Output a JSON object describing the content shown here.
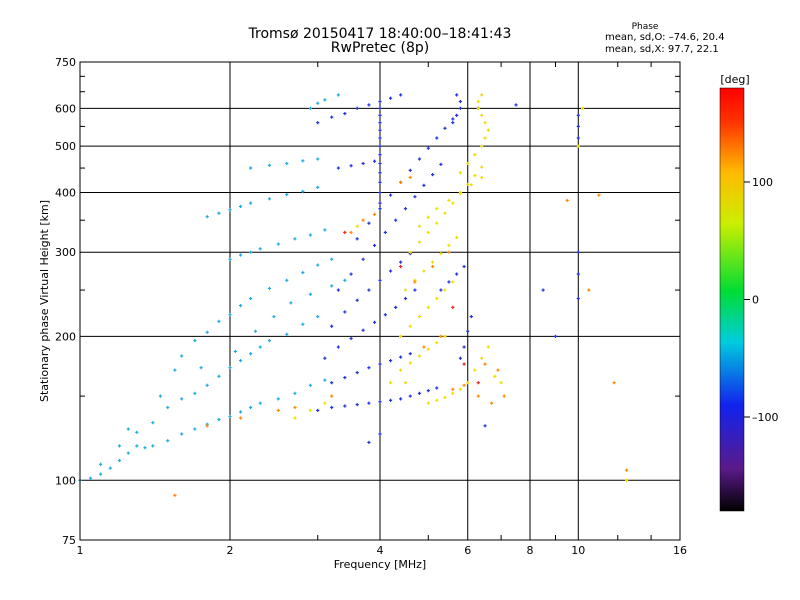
{
  "header": {
    "title_line1": "Tromsø 20150417 18:40:00–18:41:43",
    "title_line2": "RwPretec (8p)",
    "phase_title": "Phase",
    "phase_o": "mean, sd,O: –74.6, 20.4",
    "phase_x": "mean, sd,X:  97.7, 22.1"
  },
  "chart_data": {
    "type": "scatter",
    "xlabel": "Frequency [MHz]",
    "ylabel": "Stationary phase Virtual Height [km]",
    "x_scale": "log",
    "y_scale": "log",
    "xlim": [
      1,
      16
    ],
    "ylim": [
      75,
      750
    ],
    "x_ticks": [
      1,
      2,
      4,
      6,
      8,
      10,
      16
    ],
    "x_tick_labels": [
      "1",
      "2",
      "4",
      "6",
      "8",
      "10",
      "16"
    ],
    "y_ticks": [
      75,
      100,
      200,
      300,
      400,
      500,
      600,
      750
    ],
    "y_tick_labels": [
      "75",
      "100",
      "200",
      "300",
      "400",
      "500",
      "600",
      "750"
    ],
    "grid": true,
    "colorbar": {
      "label": "[deg]",
      "range": [
        -180,
        180
      ],
      "ticks": [
        100,
        0,
        -100
      ],
      "tick_labels": [
        "100",
        "0",
        "–100"
      ]
    },
    "series": [
      {
        "color_value": -30,
        "color": "#22aadd",
        "points": [
          [
            1.0,
            100
          ],
          [
            1.05,
            101
          ],
          [
            1.1,
            103
          ],
          [
            1.15,
            106
          ],
          [
            1.2,
            110
          ],
          [
            1.25,
            114
          ],
          [
            1.3,
            118
          ],
          [
            1.35,
            117
          ],
          [
            1.4,
            118
          ],
          [
            1.5,
            121
          ],
          [
            1.6,
            125
          ],
          [
            1.7,
            128
          ],
          [
            1.8,
            131
          ],
          [
            1.9,
            134
          ],
          [
            2.0,
            136
          ],
          [
            2.1,
            139
          ],
          [
            2.2,
            142
          ],
          [
            2.3,
            145
          ],
          [
            2.5,
            148
          ],
          [
            2.7,
            152
          ],
          [
            2.9,
            158
          ],
          [
            3.1,
            162
          ],
          [
            1.2,
            118
          ],
          [
            1.3,
            126
          ],
          [
            1.4,
            132
          ],
          [
            1.5,
            142
          ],
          [
            1.6,
            148
          ],
          [
            1.7,
            152
          ],
          [
            1.8,
            158
          ],
          [
            1.9,
            165
          ],
          [
            2.0,
            172
          ],
          [
            2.1,
            178
          ],
          [
            2.2,
            184
          ],
          [
            2.3,
            190
          ],
          [
            2.4,
            196
          ],
          [
            2.6,
            202
          ],
          [
            2.8,
            212
          ],
          [
            3.0,
            220
          ],
          [
            1.6,
            182
          ],
          [
            1.7,
            196
          ],
          [
            1.8,
            204
          ],
          [
            1.9,
            215
          ],
          [
            2.0,
            222
          ],
          [
            2.1,
            232
          ],
          [
            2.2,
            240
          ],
          [
            2.4,
            252
          ],
          [
            2.6,
            262
          ],
          [
            2.8,
            272
          ],
          [
            3.0,
            282
          ],
          [
            3.2,
            290
          ],
          [
            2.0,
            290
          ],
          [
            2.1,
            296
          ],
          [
            2.2,
            300
          ],
          [
            2.3,
            305
          ],
          [
            2.5,
            312
          ],
          [
            2.7,
            320
          ],
          [
            2.9,
            326
          ],
          [
            3.1,
            334
          ],
          [
            1.8,
            356
          ],
          [
            1.9,
            362
          ],
          [
            2.0,
            368
          ],
          [
            2.1,
            374
          ],
          [
            2.2,
            380
          ],
          [
            2.4,
            388
          ],
          [
            2.6,
            396
          ],
          [
            2.8,
            402
          ],
          [
            3.0,
            410
          ],
          [
            2.2,
            450
          ],
          [
            2.4,
            456
          ],
          [
            2.6,
            460
          ],
          [
            2.8,
            466
          ],
          [
            3.0,
            470
          ],
          [
            2.9,
            600
          ],
          [
            3.0,
            615
          ],
          [
            3.1,
            625
          ],
          [
            3.3,
            640
          ],
          [
            1.1,
            108
          ],
          [
            1.25,
            128
          ],
          [
            1.45,
            150
          ],
          [
            1.55,
            170
          ],
          [
            1.75,
            172
          ],
          [
            2.05,
            186
          ],
          [
            2.25,
            205
          ],
          [
            2.45,
            220
          ],
          [
            2.65,
            235
          ],
          [
            2.9,
            245
          ],
          [
            3.2,
            255
          ],
          [
            3.4,
            262
          ]
        ]
      },
      {
        "color_value": -110,
        "color": "#2233dd",
        "points": [
          [
            3.0,
            140
          ],
          [
            3.2,
            142
          ],
          [
            3.4,
            143
          ],
          [
            3.6,
            144
          ],
          [
            3.8,
            145
          ],
          [
            4.0,
            146
          ],
          [
            4.2,
            147
          ],
          [
            4.4,
            148
          ],
          [
            4.6,
            150
          ],
          [
            4.8,
            152
          ],
          [
            5.0,
            154
          ],
          [
            5.2,
            156
          ],
          [
            3.2,
            160
          ],
          [
            3.4,
            164
          ],
          [
            3.6,
            168
          ],
          [
            3.8,
            172
          ],
          [
            4.0,
            175
          ],
          [
            4.2,
            178
          ],
          [
            4.4,
            181
          ],
          [
            4.6,
            184
          ],
          [
            3.1,
            180
          ],
          [
            3.3,
            190
          ],
          [
            3.5,
            198
          ],
          [
            3.7,
            206
          ],
          [
            3.9,
            214
          ],
          [
            4.1,
            222
          ],
          [
            4.3,
            230
          ],
          [
            4.5,
            240
          ],
          [
            4.7,
            250
          ],
          [
            3.2,
            210
          ],
          [
            3.4,
            225
          ],
          [
            3.6,
            238
          ],
          [
            3.8,
            250
          ],
          [
            4.0,
            262
          ],
          [
            4.2,
            274
          ],
          [
            4.4,
            286
          ],
          [
            4.6,
            298
          ],
          [
            3.3,
            250
          ],
          [
            3.5,
            270
          ],
          [
            3.7,
            290
          ],
          [
            3.9,
            310
          ],
          [
            4.1,
            330
          ],
          [
            4.3,
            350
          ],
          [
            4.5,
            370
          ],
          [
            4.7,
            392
          ],
          [
            4.9,
            414
          ],
          [
            5.1,
            436
          ],
          [
            5.3,
            458
          ],
          [
            3.6,
            320
          ],
          [
            3.8,
            345
          ],
          [
            4.0,
            370
          ],
          [
            4.2,
            395
          ],
          [
            4.4,
            420
          ],
          [
            4.6,
            445
          ],
          [
            4.8,
            470
          ],
          [
            5.0,
            495
          ],
          [
            5.2,
            520
          ],
          [
            5.4,
            545
          ],
          [
            5.6,
            570
          ],
          [
            4.0,
            380
          ],
          [
            4.0,
            400
          ],
          [
            4.0,
            420
          ],
          [
            4.0,
            440
          ],
          [
            4.0,
            460
          ],
          [
            4.0,
            480
          ],
          [
            4.0,
            500
          ],
          [
            4.0,
            520
          ],
          [
            4.0,
            540
          ],
          [
            4.0,
            560
          ],
          [
            4.0,
            580
          ],
          [
            4.0,
            600
          ],
          [
            5.6,
            560
          ],
          [
            5.7,
            580
          ],
          [
            5.8,
            600
          ],
          [
            5.8,
            620
          ],
          [
            5.7,
            640
          ],
          [
            3.0,
            560
          ],
          [
            3.2,
            575
          ],
          [
            3.4,
            585
          ],
          [
            3.6,
            600
          ],
          [
            3.8,
            610
          ],
          [
            4.0,
            620
          ],
          [
            4.2,
            630
          ],
          [
            4.4,
            640
          ],
          [
            3.3,
            450
          ],
          [
            3.5,
            455
          ],
          [
            3.7,
            460
          ],
          [
            3.9,
            465
          ],
          [
            5.3,
            250
          ],
          [
            5.5,
            260
          ],
          [
            5.7,
            270
          ],
          [
            5.9,
            280
          ],
          [
            5.8,
            180
          ],
          [
            5.9,
            190
          ],
          [
            6.0,
            205
          ],
          [
            6.1,
            220
          ],
          [
            3.8,
            120
          ],
          [
            4.0,
            125
          ],
          [
            6.5,
            130
          ],
          [
            10.0,
            580
          ],
          [
            10.0,
            550
          ],
          [
            10.0,
            520
          ],
          [
            10.0,
            300
          ],
          [
            10.0,
            270
          ],
          [
            10.0,
            240
          ],
          [
            9.0,
            200
          ],
          [
            8.5,
            250
          ],
          [
            7.5,
            610
          ],
          [
            6.3,
            600
          ]
        ]
      },
      {
        "color_value": 110,
        "color": "#eedd00",
        "points": [
          [
            4.4,
            170
          ],
          [
            4.6,
            176
          ],
          [
            4.8,
            182
          ],
          [
            5.0,
            188
          ],
          [
            5.2,
            194
          ],
          [
            5.4,
            200
          ],
          [
            4.4,
            200
          ],
          [
            4.6,
            210
          ],
          [
            4.8,
            220
          ],
          [
            5.0,
            230
          ],
          [
            5.2,
            240
          ],
          [
            5.4,
            250
          ],
          [
            5.6,
            260
          ],
          [
            4.5,
            250
          ],
          [
            4.7,
            262
          ],
          [
            4.9,
            274
          ],
          [
            5.1,
            286
          ],
          [
            5.3,
            298
          ],
          [
            5.5,
            310
          ],
          [
            5.7,
            322
          ],
          [
            4.6,
            300
          ],
          [
            4.8,
            315
          ],
          [
            5.0,
            330
          ],
          [
            5.2,
            345
          ],
          [
            5.4,
            362
          ],
          [
            5.6,
            380
          ],
          [
            5.8,
            398
          ],
          [
            6.0,
            416
          ],
          [
            6.2,
            434
          ],
          [
            6.4,
            452
          ],
          [
            4.8,
            340
          ],
          [
            5.0,
            355
          ],
          [
            5.2,
            370
          ],
          [
            5.5,
            385
          ],
          [
            5.8,
            400
          ],
          [
            6.1,
            415
          ],
          [
            6.4,
            430
          ],
          [
            5.0,
            145
          ],
          [
            5.2,
            147
          ],
          [
            5.4,
            149
          ],
          [
            5.6,
            152
          ],
          [
            5.8,
            155
          ],
          [
            6.0,
            160
          ],
          [
            6.2,
            170
          ],
          [
            6.4,
            180
          ],
          [
            6.6,
            190
          ],
          [
            6.8,
            165
          ],
          [
            7.0,
            160
          ],
          [
            6.4,
            500
          ],
          [
            6.5,
            520
          ],
          [
            6.6,
            540
          ],
          [
            6.5,
            560
          ],
          [
            6.4,
            580
          ],
          [
            6.3,
            600
          ],
          [
            6.3,
            620
          ],
          [
            6.4,
            640
          ],
          [
            6.2,
            480
          ],
          [
            6.0,
            460
          ],
          [
            5.8,
            440
          ],
          [
            4.2,
            160
          ],
          [
            4.5,
            160
          ],
          [
            3.4,
            330
          ],
          [
            3.6,
            340
          ],
          [
            2.7,
            135
          ],
          [
            2.9,
            140
          ],
          [
            3.1,
            145
          ],
          [
            10.2,
            600
          ],
          [
            10.0,
            500
          ],
          [
            12.5,
            100
          ]
        ]
      },
      {
        "color_value": 150,
        "color": "#ff8800",
        "points": [
          [
            3.5,
            330
          ],
          [
            3.7,
            350
          ],
          [
            3.9,
            360
          ],
          [
            4.7,
            260
          ],
          [
            5.1,
            280
          ],
          [
            5.5,
            300
          ],
          [
            4.9,
            190
          ],
          [
            5.3,
            200
          ],
          [
            5.6,
            155
          ],
          [
            5.9,
            158
          ],
          [
            6.3,
            150
          ],
          [
            6.7,
            145
          ],
          [
            7.1,
            150
          ],
          [
            6.5,
            175
          ],
          [
            6.9,
            170
          ],
          [
            4.4,
            420
          ],
          [
            4.6,
            430
          ],
          [
            2.5,
            140
          ],
          [
            2.7,
            142
          ],
          [
            3.2,
            150
          ],
          [
            1.8,
            130
          ],
          [
            2.1,
            135
          ],
          [
            1.55,
            93
          ],
          [
            11.8,
            160
          ],
          [
            12.5,
            105
          ],
          [
            11.0,
            395
          ],
          [
            10.5,
            250
          ],
          [
            9.5,
            385
          ]
        ]
      },
      {
        "color_value": 175,
        "color": "#ee2222",
        "points": [
          [
            4.4,
            280
          ],
          [
            5.6,
            230
          ],
          [
            5.9,
            175
          ],
          [
            6.3,
            160
          ],
          [
            3.4,
            330
          ]
        ]
      }
    ]
  }
}
